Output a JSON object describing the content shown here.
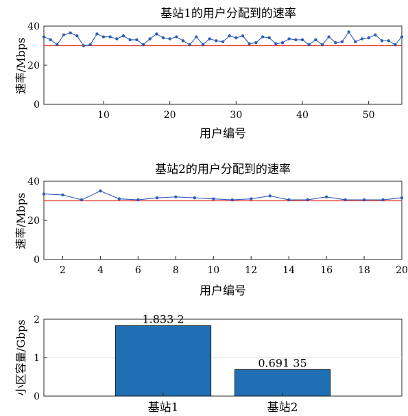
{
  "chart_data": [
    {
      "type": "line",
      "title": "基站1的用户分配到的速率",
      "xlabel": "用户编号",
      "ylabel": "速率/Mbps",
      "xlim": [
        1,
        55
      ],
      "ylim": [
        0,
        40
      ],
      "xticks": [
        10,
        20,
        30,
        40,
        50
      ],
      "yticks": [
        0,
        20,
        40
      ],
      "grid": false,
      "threshold": 30,
      "series": [
        {
          "color": "#2e5cb8",
          "x": [
            1,
            2,
            3,
            4,
            5,
            6,
            7,
            8,
            9,
            10,
            11,
            12,
            13,
            14,
            15,
            16,
            17,
            18,
            19,
            20,
            21,
            22,
            23,
            24,
            25,
            26,
            27,
            28,
            29,
            30,
            31,
            32,
            33,
            34,
            35,
            36,
            37,
            38,
            39,
            40,
            41,
            42,
            43,
            44,
            45,
            46,
            47,
            48,
            49,
            50,
            51,
            52,
            53,
            54,
            55
          ],
          "y": [
            34.5,
            33,
            30.5,
            35.5,
            36.5,
            35,
            30,
            30.5,
            36,
            34.5,
            34.5,
            33.5,
            35,
            33,
            33,
            30.5,
            33.5,
            36,
            34,
            33.5,
            34.5,
            32.5,
            30.5,
            34.5,
            30.5,
            33.5,
            32.5,
            32,
            35,
            34,
            35,
            31,
            31.5,
            34.5,
            34,
            31,
            31.5,
            33.5,
            33,
            33,
            30.5,
            33,
            30.5,
            34.5,
            31.5,
            32,
            37,
            32,
            33.5,
            34,
            35.5,
            32.5,
            32.5,
            30.5,
            34.5
          ]
        }
      ],
      "threshold_color": "#e8352d"
    },
    {
      "type": "line",
      "title": "基站2的用户分配到的速率",
      "xlabel": "用户编号",
      "ylabel": "速率/Mbps",
      "xlim": [
        1,
        20
      ],
      "ylim": [
        0,
        40
      ],
      "xticks": [
        2,
        4,
        6,
        8,
        10,
        12,
        14,
        16,
        18,
        20
      ],
      "yticks": [
        0,
        20,
        40
      ],
      "grid": false,
      "threshold": 30,
      "series": [
        {
          "color": "#2e5cb8",
          "x": [
            1,
            2,
            3,
            4,
            5,
            6,
            7,
            8,
            9,
            10,
            11,
            12,
            13,
            14,
            15,
            16,
            17,
            18,
            19,
            20
          ],
          "y": [
            33.5,
            33,
            30.5,
            35,
            31,
            30.5,
            31.5,
            32,
            31.5,
            31,
            30.5,
            31,
            32.5,
            30.5,
            30.5,
            32,
            30.5,
            30.5,
            30.5,
            31.5
          ]
        }
      ],
      "threshold_color": "#e8352d"
    },
    {
      "type": "bar",
      "title": "",
      "xlabel": "",
      "ylabel": "小区容量/Gbps",
      "categories": [
        "基站1",
        "基站2"
      ],
      "values": [
        1.8332,
        0.69135
      ],
      "value_labels": [
        "1.833 2",
        "0.691 35"
      ],
      "ylim": [
        0,
        2
      ],
      "yticks": [
        0,
        1,
        2
      ],
      "grid": true,
      "bar_color": "#1f6fb5"
    }
  ]
}
